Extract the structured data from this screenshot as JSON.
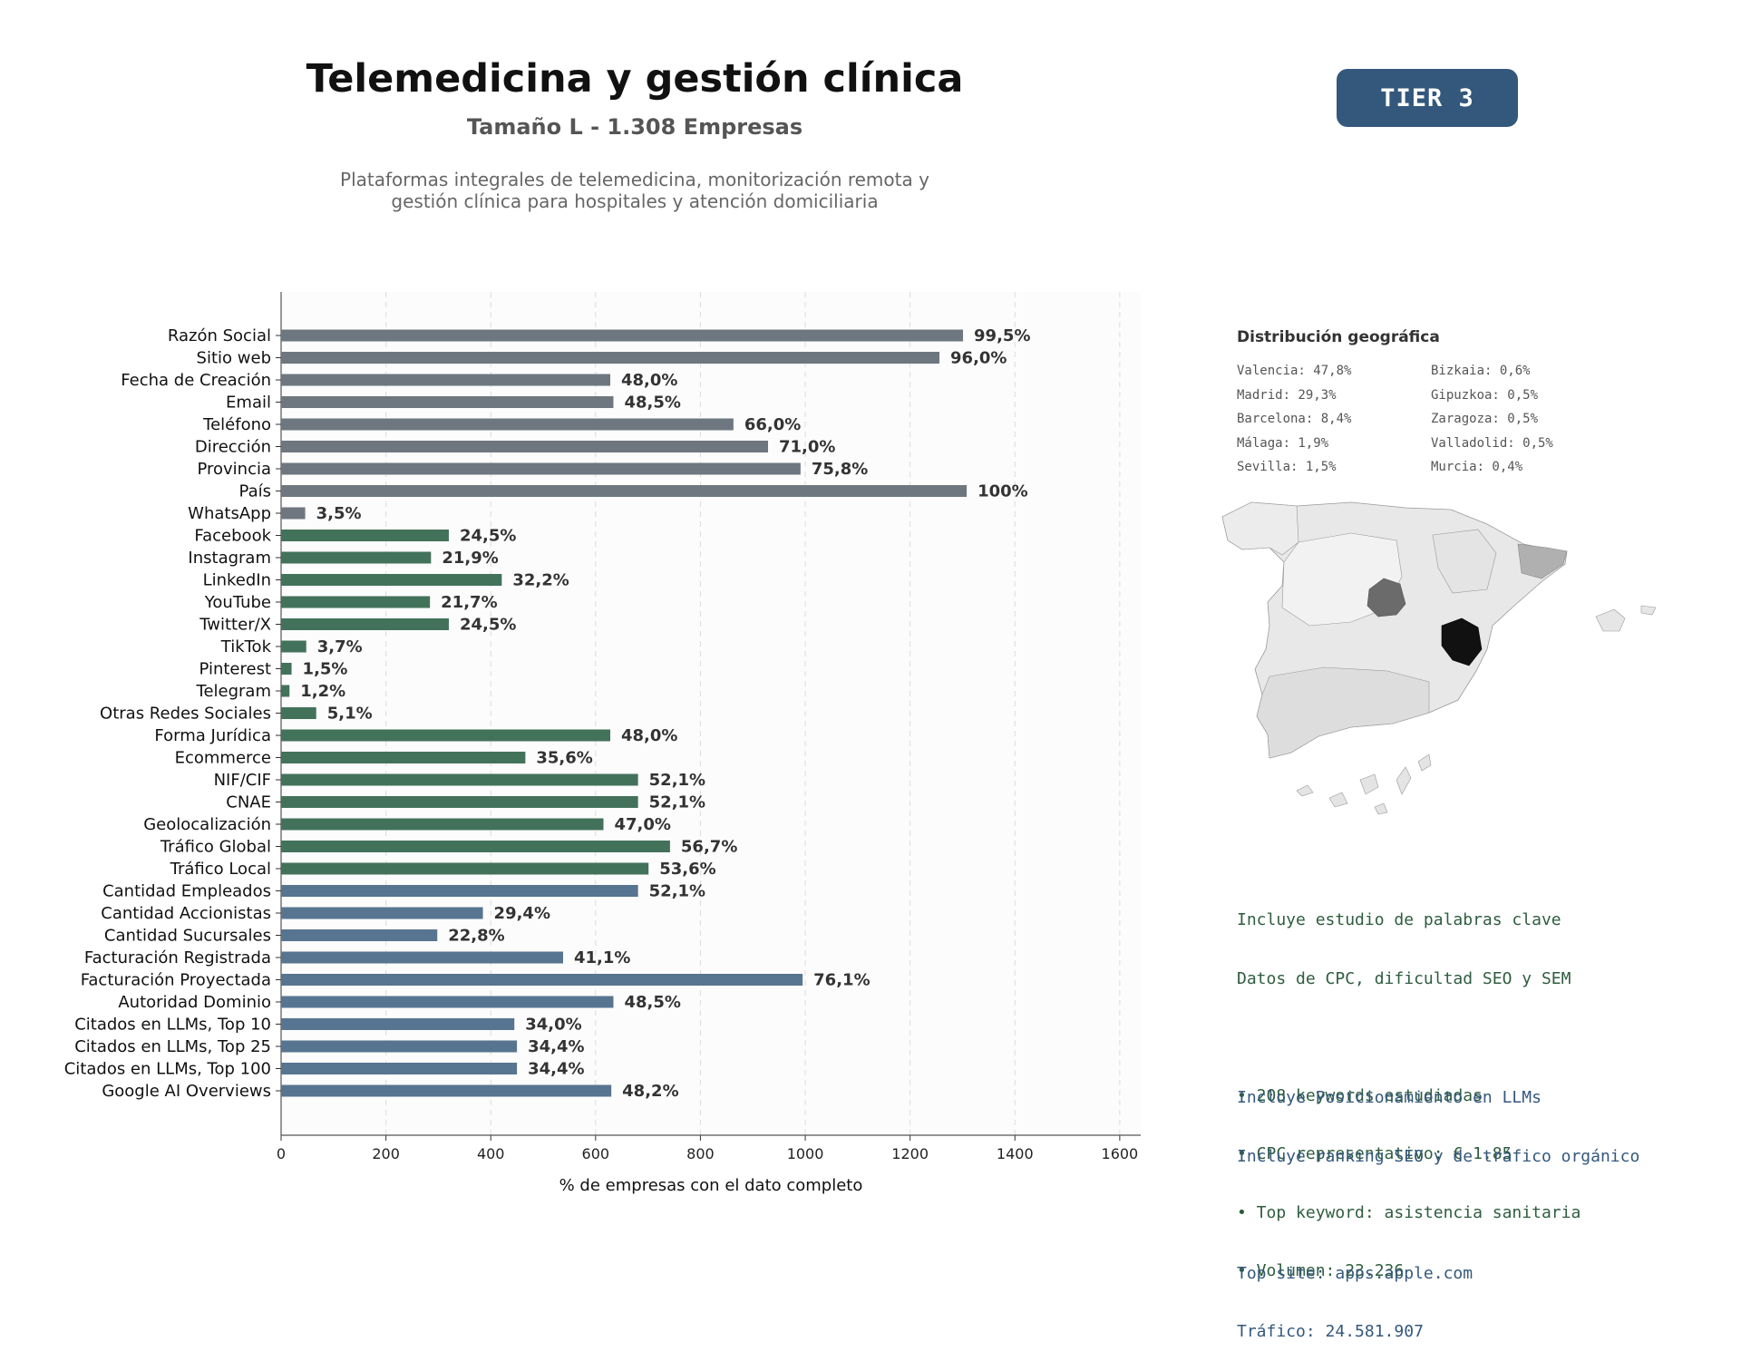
{
  "header": {
    "title": "Telemedicina y gestión clínica",
    "subtitle": "Tamaño L - 1.308 Empresas",
    "description_lines": [
      "Plataformas integrales de telemedicina, monitorización remota y",
      "gestión clínica para hospitales y atención domiciliaria"
    ],
    "tier_label": "TIER 3"
  },
  "colors": {
    "gray": "#6e7780",
    "green": "#43725b",
    "blue": "#577590",
    "grid": "#dcdcdc",
    "plot_bg": "#fcfcfc"
  },
  "chart_data": {
    "type": "bar",
    "orientation": "horizontal",
    "xlabel": "% de empresas con el dato completo",
    "xlim": [
      0,
      1640
    ],
    "xticks": [
      0,
      200,
      400,
      600,
      800,
      1000,
      1200,
      1400,
      1600
    ],
    "grid": "vertical dashed",
    "categories": [
      "Razón Social",
      "Sitio web",
      "Fecha de Creación",
      "Email",
      "Teléfono",
      "Dirección",
      "Provincia",
      "País",
      "WhatsApp",
      "Facebook",
      "Instagram",
      "LinkedIn",
      "YouTube",
      "Twitter/X",
      "TikTok",
      "Pinterest",
      "Telegram",
      "Otras Redes Sociales",
      "Forma Jurídica",
      "Ecommerce",
      "NIF/CIF",
      "CNAE",
      "Geolocalización",
      "Tráfico Global",
      "Tráfico Local",
      "Cantidad Empleados",
      "Cantidad Accionistas",
      "Cantidad Sucursales",
      "Facturación Registrada",
      "Facturación Proyectada",
      "Autoridad Dominio",
      "Citados en LLMs, Top 10",
      "Citados en LLMs, Top 25",
      "Citados en LLMs, Top 100",
      "Google AI Overviews"
    ],
    "values": [
      1301,
      1256,
      628,
      634,
      863,
      929,
      991,
      1308,
      46,
      320,
      286,
      421,
      284,
      320,
      48,
      20,
      16,
      67,
      628,
      466,
      681,
      681,
      615,
      742,
      701,
      681,
      385,
      298,
      538,
      995,
      634,
      445,
      450,
      450,
      630
    ],
    "labels": [
      "99,5%",
      "96,0%",
      "48,0%",
      "48,5%",
      "66,0%",
      "71,0%",
      "75,8%",
      "100%",
      "3,5%",
      "24,5%",
      "21,9%",
      "32,2%",
      "21,7%",
      "24,5%",
      "3,7%",
      "1,5%",
      "1,2%",
      "5,1%",
      "48,0%",
      "35,6%",
      "52,1%",
      "52,1%",
      "47,0%",
      "56,7%",
      "53,6%",
      "52,1%",
      "29,4%",
      "22,8%",
      "41,1%",
      "76,1%",
      "48,5%",
      "34,0%",
      "34,4%",
      "34,4%",
      "48,2%"
    ],
    "groups": [
      "gray",
      "gray",
      "gray",
      "gray",
      "gray",
      "gray",
      "gray",
      "gray",
      "gray",
      "green",
      "green",
      "green",
      "green",
      "green",
      "green",
      "green",
      "green",
      "green",
      "green",
      "green",
      "green",
      "green",
      "green",
      "green",
      "green",
      "blue",
      "blue",
      "blue",
      "blue",
      "blue",
      "blue",
      "blue",
      "blue",
      "blue",
      "blue"
    ]
  },
  "geo": {
    "title": "Distribución geográfica",
    "items": [
      "Valencia: 47,8%",
      "Bizkaia: 0,6%",
      "Madrid: 29,3%",
      "Gipuzkoa: 0,5%",
      "Barcelona: 8,4%",
      "Zaragoza: 0,5%",
      "Málaga: 1,9%",
      "Valladolid: 0,5%",
      "Sevilla: 1,5%",
      "Murcia: 0,4%"
    ]
  },
  "keywords": {
    "lines": [
      "Incluye estudio de palabras clave",
      "Datos de CPC, dificultad SEO y SEM",
      "",
      "• 208 keywords estudiadas",
      "• CPC representativo: € 1.85",
      "• Top keyword: asistencia sanitaria",
      "• Volumen: 23.236"
    ]
  },
  "llm": {
    "lines": [
      "Incluye Posicionamiento en LLMs",
      "Incluye ranking SEO y de tráfico orgánico",
      "",
      "Top site: apps.apple.com",
      "Tráfico: 24.581.907"
    ]
  }
}
